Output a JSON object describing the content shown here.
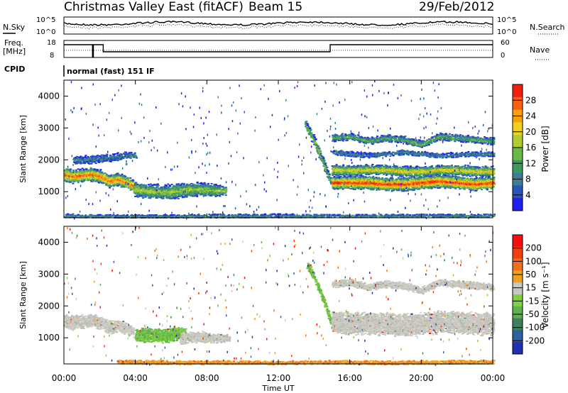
{
  "header": {
    "station": "Christmas Valley East (fitACF)",
    "beam": "Beam 15",
    "date": "29/Feb/2012"
  },
  "noise_panel": {
    "left_label": "N.Sky",
    "right_label": "N.Search",
    "left_ticks": [
      "10^5",
      "10^0"
    ],
    "right_ticks": [
      "10^5",
      "10^0"
    ]
  },
  "freq_panel": {
    "left_label_1": "Freq.",
    "left_label_2": "[MHz]",
    "right_label": "Nave",
    "left_ticks": [
      "18",
      "8"
    ],
    "right_ticks": [
      "60",
      "0"
    ]
  },
  "cpid": {
    "label": "CPID",
    "program": "normal (fast) 151 IF"
  },
  "chart_data": [
    {
      "type": "heatmap",
      "title": "Power",
      "xlabel": "Time UT",
      "ylabel": "Slant Range [km]",
      "x_ticks": [
        "00:00",
        "04:00",
        "08:00",
        "12:00",
        "16:00",
        "20:00",
        "00:00"
      ],
      "y_ticks": [
        "1000",
        "2000",
        "3000",
        "4000"
      ],
      "ylim": [
        180,
        4500
      ],
      "colorbar": {
        "label": "Power [dB]",
        "ticks": [
          "28",
          "24",
          "20",
          "16",
          "12",
          "8",
          "4"
        ],
        "colors": [
          "#2020f0",
          "#2a55b8",
          "#3c7d98",
          "#3c9a60",
          "#6cb848",
          "#b0cc30",
          "#f0d020",
          "#f8a010",
          "#f86010",
          "#f02010"
        ]
      },
      "features": [
        {
          "name": "band",
          "times": [
            0.0,
            0.5,
            1.0,
            1.5,
            2.0,
            2.5,
            3.0,
            3.5,
            3.9
          ],
          "ranges": [
            1550,
            1500,
            1520,
            1560,
            1500,
            1350,
            1400,
            1300,
            1200
          ],
          "widths": [
            250,
            250,
            230,
            230,
            230,
            230,
            220,
            210,
            200
          ],
          "weight": 0.9
        },
        {
          "name": "band",
          "times": [
            3.9,
            4.5,
            5.5,
            6.5,
            7.5,
            8.5,
            9.0
          ],
          "ranges": [
            1100,
            1050,
            1000,
            1050,
            1100,
            1050,
            1050
          ],
          "widths": [
            250,
            260,
            260,
            260,
            240,
            200,
            160
          ],
          "weight": 0.55
        },
        {
          "name": "band",
          "times": [
            0.5,
            2.0,
            3.5,
            4.0
          ],
          "ranges": [
            2000,
            2050,
            2150,
            2150
          ],
          "widths": [
            150,
            150,
            130,
            110
          ],
          "weight": 0.25
        },
        {
          "name": "band",
          "times": [
            13.5,
            14.0,
            14.5,
            15.0
          ],
          "ranges": [
            3100,
            2600,
            1900,
            1200
          ],
          "widths": [
            160,
            160,
            160,
            150
          ],
          "weight": 0.5
        },
        {
          "name": "band",
          "times": [
            15.0,
            16.0,
            17.0,
            18.0,
            19.0,
            20.0,
            21.0,
            22.0,
            23.0,
            24.0
          ],
          "ranges": [
            1300,
            1300,
            1300,
            1250,
            1250,
            1300,
            1350,
            1300,
            1250,
            1300
          ],
          "widths": [
            220,
            230,
            230,
            230,
            230,
            230,
            230,
            230,
            220,
            220
          ],
          "weight": 1.0
        },
        {
          "name": "band",
          "times": [
            15.0,
            16.0,
            17.0,
            18.0,
            19.0,
            20.0,
            21.0,
            22.0,
            23.0,
            24.0
          ],
          "ranges": [
            1700,
            1680,
            1700,
            1700,
            1650,
            1650,
            1700,
            1700,
            1650,
            1650
          ],
          "widths": [
            180,
            180,
            180,
            180,
            180,
            180,
            180,
            180,
            180,
            180
          ],
          "weight": 0.7
        },
        {
          "name": "band",
          "times": [
            15.0,
            16.0,
            17.0,
            18.0,
            19.0,
            20.0,
            21.0,
            22.0,
            23.0,
            24.0
          ],
          "ranges": [
            2700,
            2750,
            2600,
            2700,
            2650,
            2500,
            2750,
            2700,
            2650,
            2600
          ],
          "widths": [
            130,
            130,
            130,
            130,
            130,
            130,
            130,
            130,
            130,
            130
          ],
          "weight": 0.4
        },
        {
          "name": "band",
          "times": [
            15.0,
            17.0,
            19.0,
            21.0,
            23.0,
            24.0
          ],
          "ranges": [
            2250,
            2150,
            2250,
            2150,
            2200,
            2200
          ],
          "widths": [
            90,
            90,
            90,
            90,
            90,
            90
          ],
          "weight": 0.25
        },
        {
          "name": "band",
          "times": [
            0.0,
            4.0,
            8.0,
            12.0,
            16.0,
            20.0,
            24.0
          ],
          "ranges": [
            260,
            240,
            250,
            260,
            250,
            260,
            260
          ],
          "widths": [
            70,
            60,
            70,
            70,
            60,
            60,
            60
          ],
          "weight": 0.3
        }
      ]
    },
    {
      "type": "heatmap",
      "title": "Velocity",
      "xlabel": "Time UT",
      "ylabel": "Slant Range [km]",
      "x_ticks": [
        "00:00",
        "04:00",
        "08:00",
        "12:00",
        "16:00",
        "20:00",
        "00:00"
      ],
      "y_ticks": [
        "1000",
        "2000",
        "3000",
        "4000"
      ],
      "ylim": [
        180,
        4500
      ],
      "colorbar": {
        "label": "Velocity [m s⁻¹]",
        "ticks": [
          "200",
          "100",
          "50",
          "15",
          "-15",
          "-50",
          "-100",
          "-200"
        ],
        "colors": [
          "#2030b0",
          "#3060a0",
          "#408060",
          "#60b050",
          "#80d040",
          "#c8c8c0",
          "#f0a020",
          "#f07020",
          "#f04010",
          "#f01010"
        ]
      },
      "features": [
        {
          "name": "ground-scatter",
          "times": [
            0.0,
            0.5,
            1.0,
            1.5,
            2.0,
            2.5,
            3.0,
            3.5,
            3.9
          ],
          "ranges": [
            1550,
            1500,
            1520,
            1560,
            1500,
            1350,
            1400,
            1300,
            1200
          ],
          "widths": [
            250,
            250,
            230,
            230,
            230,
            230,
            220,
            210,
            200
          ],
          "class": "gray"
        },
        {
          "name": "flow",
          "times": [
            4.0,
            4.8,
            5.6,
            6.2,
            6.8
          ],
          "ranges": [
            1100,
            1100,
            1080,
            1150,
            1150
          ],
          "widths": [
            240,
            250,
            250,
            240,
            200
          ],
          "class": "green"
        },
        {
          "name": "ground-scatter",
          "times": [
            6.5,
            7.5,
            8.5,
            9.2
          ],
          "ranges": [
            1000,
            1050,
            1000,
            1000
          ],
          "widths": [
            200,
            200,
            160,
            120
          ],
          "class": "gray"
        },
        {
          "name": "flow",
          "times": [
            13.6,
            14.0,
            14.5,
            15.0
          ],
          "ranges": [
            3300,
            2900,
            2200,
            1400
          ],
          "widths": [
            140,
            140,
            140,
            130
          ],
          "class": "green"
        },
        {
          "name": "ground-scatter",
          "times": [
            15.0,
            16.0,
            17.0,
            18.0,
            19.0,
            20.0,
            21.0,
            22.0,
            23.0,
            24.0
          ],
          "ranges": [
            1500,
            1450,
            1450,
            1450,
            1400,
            1450,
            1500,
            1500,
            1450,
            1450
          ],
          "widths": [
            380,
            380,
            380,
            380,
            380,
            380,
            380,
            380,
            380,
            380
          ],
          "class": "gray"
        },
        {
          "name": "ground-scatter",
          "times": [
            15.0,
            16.0,
            17.0,
            18.0,
            19.0,
            20.0,
            21.0,
            22.0,
            23.0,
            24.0
          ],
          "ranges": [
            2700,
            2750,
            2600,
            2700,
            2650,
            2500,
            2750,
            2700,
            2650,
            2600
          ],
          "widths": [
            130,
            130,
            130,
            130,
            130,
            130,
            130,
            130,
            130,
            130
          ],
          "class": "gray"
        },
        {
          "name": "ionospheric-flow",
          "times": [
            3.0,
            6.0,
            9.0,
            12.0,
            15.0,
            18.0,
            21.0,
            24.0
          ],
          "ranges": [
            260,
            240,
            230,
            230,
            250,
            230,
            250,
            260
          ],
          "widths": [
            80,
            70,
            80,
            70,
            70,
            70,
            70,
            80
          ],
          "class": "orange"
        }
      ]
    }
  ]
}
